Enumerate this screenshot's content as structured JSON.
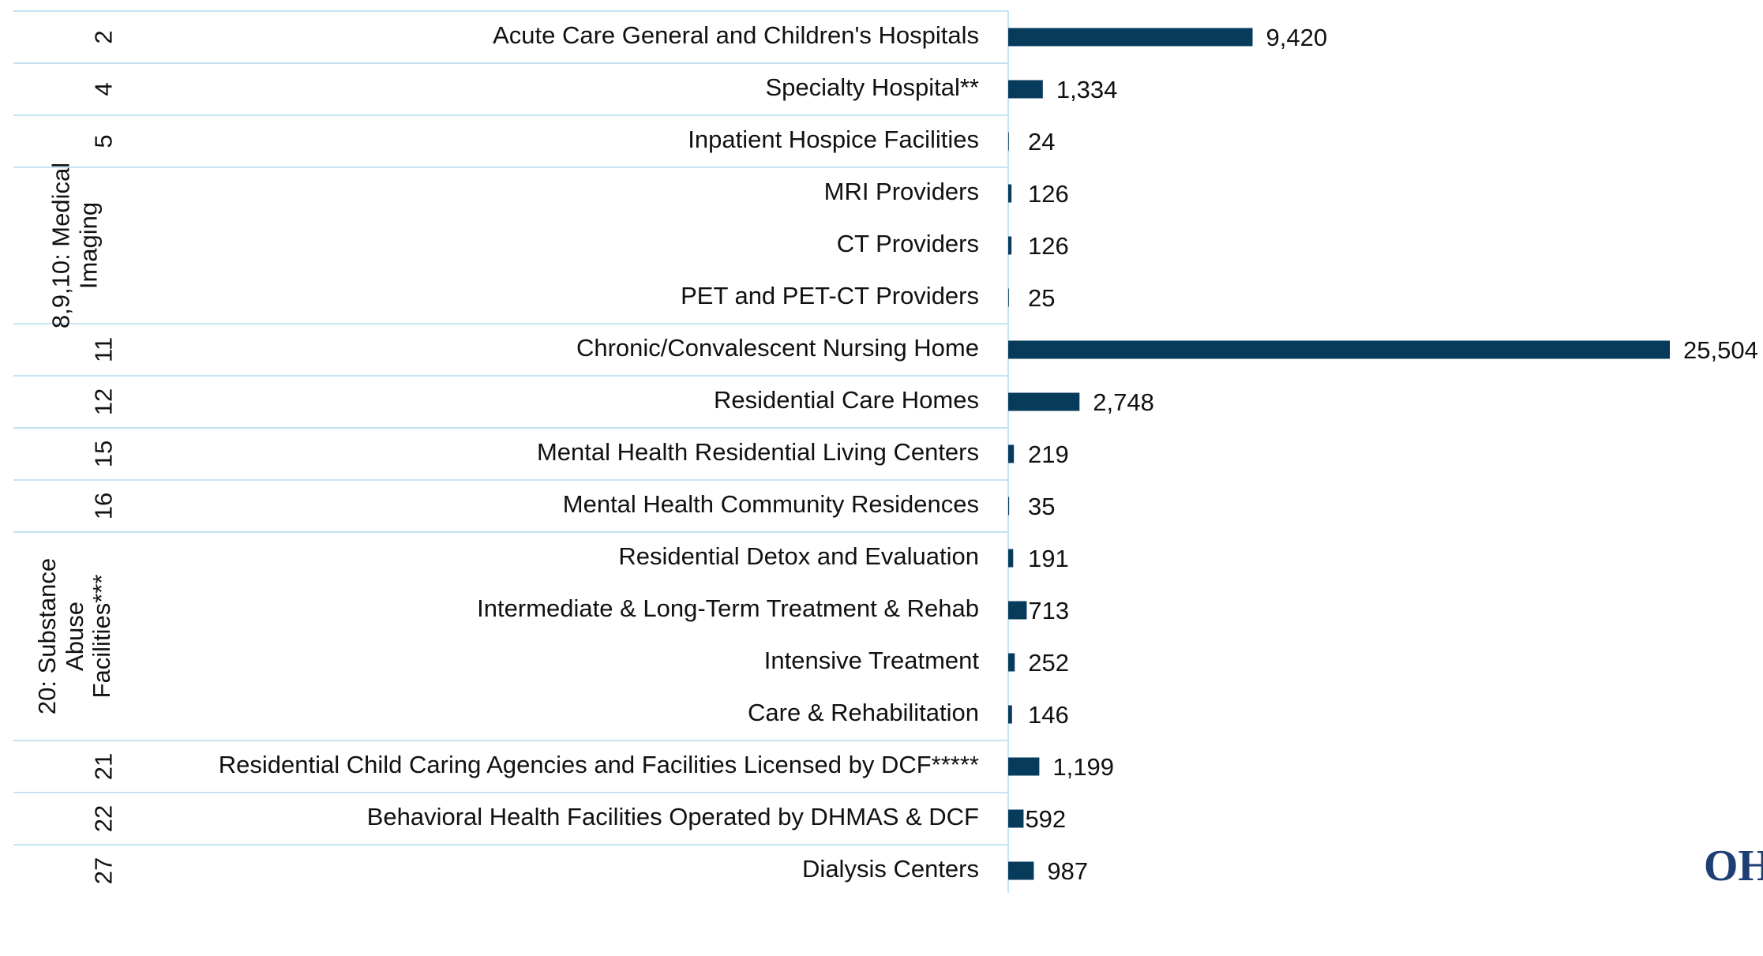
{
  "chart_data": {
    "type": "bar",
    "orientation": "horizontal",
    "color": "#073b5c",
    "categories": [
      "Acute Care General and Children's Hospitals",
      "Specialty Hospital**",
      "Inpatient Hospice Facilities",
      "MRI Providers",
      "CT Providers",
      "PET and PET-CT Providers",
      "Chronic/Convalescent Nursing Home",
      "Residential Care Homes",
      "Mental Health Residential Living Centers",
      "Mental Health Community Residences",
      "Residential Detox and Evaluation",
      "Intermediate & Long-Term Treatment & Rehab",
      "Intensive Treatment",
      "Care & Rehabilitation",
      "Residential Child Caring Agencies and Facilities Licensed by DCF*****",
      "Behavioral Health Facilities Operated by DHMAS & DCF",
      "Dialysis Centers"
    ],
    "values": [
      9420,
      1334,
      24,
      126,
      126,
      25,
      25504,
      2748,
      219,
      35,
      191,
      713,
      252,
      146,
      1199,
      592,
      987
    ],
    "value_labels": [
      "9,420",
      "1,334",
      "24",
      "126",
      "126",
      "25",
      "25,504",
      "2,748",
      "219",
      "35",
      "191",
      "713",
      "252",
      "146",
      "1,199",
      "592",
      "987"
    ],
    "groups": [
      {
        "label": "2",
        "span": 1
      },
      {
        "label": "4",
        "span": 1
      },
      {
        "label": "5",
        "span": 1
      },
      {
        "label": "8,9,10: Medical Imaging",
        "span": 3
      },
      {
        "label": "11",
        "span": 1
      },
      {
        "label": "12",
        "span": 1
      },
      {
        "label": "15",
        "span": 1
      },
      {
        "label": "16",
        "span": 1
      },
      {
        "label": "20: Substance Abuse Facilities***",
        "span": 4
      },
      {
        "label": "21",
        "span": 1
      },
      {
        "label": "22",
        "span": 1
      },
      {
        "label": "27",
        "span": 1
      }
    ]
  },
  "logo": "OH"
}
